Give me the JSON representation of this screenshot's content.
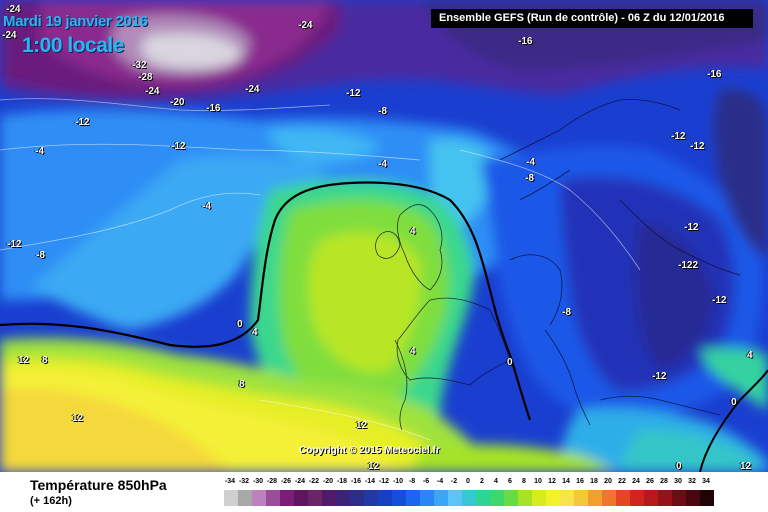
{
  "header": {
    "date": "Mardi 19 janvier 2016",
    "local_time": "1:00 locale",
    "run_info": "Ensemble GEFS  (Run de contrôle)  -  06 Z du 12/01/2016"
  },
  "copyright": "Copyright © 2015 Meteociel.fr",
  "footer": {
    "title": "Température 850hPa",
    "subtitle": "(+ 162h)"
  },
  "legend": {
    "values": [
      "-34",
      "-32",
      "-30",
      "-28",
      "-26",
      "-24",
      "-22",
      "-20",
      "-18",
      "-16",
      "-14",
      "-12",
      "-10",
      "-8",
      "-6",
      "-4",
      "-2",
      "0",
      "2",
      "4",
      "6",
      "8",
      "10",
      "12",
      "14",
      "16",
      "18",
      "20",
      "22",
      "24",
      "26",
      "28",
      "30",
      "32",
      "34"
    ],
    "colors": [
      "#cfcfcf",
      "#a8a8a8",
      "#bd82bd",
      "#9a4e9a",
      "#7a1e7a",
      "#5e145e",
      "#6b2467",
      "#4f1a6a",
      "#3b2478",
      "#2c2e8d",
      "#2238a6",
      "#173fc1",
      "#1350da",
      "#1b66ef",
      "#2a86f7",
      "#3ba6f8",
      "#5bc6f6",
      "#37c8d2",
      "#2fd494",
      "#3ad86e",
      "#66dc44",
      "#a6e326",
      "#d7ec1f",
      "#f2f229",
      "#f7e34a",
      "#f5c83a",
      "#f39f2b",
      "#f0752a",
      "#e44624",
      "#cf2720",
      "#b5191c",
      "#95121a",
      "#6e0c16",
      "#4a0711",
      "#200307"
    ]
  },
  "map_labels": [
    {
      "text": "-24",
      "light": true
    },
    {
      "text": "-24",
      "light": true
    },
    {
      "text": "-24",
      "light": true
    },
    {
      "text": "-16",
      "light": true
    },
    {
      "text": "-32",
      "light": true
    },
    {
      "text": "-28",
      "light": true
    },
    {
      "text": "-24",
      "light": true
    },
    {
      "text": "-20",
      "light": true
    },
    {
      "text": "-16",
      "light": true
    },
    {
      "text": "-24",
      "light": true
    },
    {
      "text": "-16",
      "light": true
    },
    {
      "text": "-12",
      "light": true
    },
    {
      "text": "-12",
      "light": true
    },
    {
      "text": "-8",
      "light": true
    },
    {
      "text": "-12",
      "light": true
    },
    {
      "text": "-12",
      "light": true
    },
    {
      "text": "-4",
      "light": true
    },
    {
      "text": "-4",
      "light": true
    },
    {
      "text": "-4",
      "light": true
    },
    {
      "text": "-8",
      "light": true
    },
    {
      "text": "-12",
      "light": true
    },
    {
      "text": "-12",
      "light": true
    },
    {
      "text": "-4",
      "light": true
    },
    {
      "text": "-12",
      "light": true
    },
    {
      "text": "-8",
      "light": true
    },
    {
      "text": "4",
      "light": true
    },
    {
      "text": "-122",
      "light": true
    },
    {
      "text": "-12",
      "light": true
    },
    {
      "text": "-8",
      "light": true
    },
    {
      "text": "0",
      "light": true
    },
    {
      "text": "4",
      "light": true
    },
    {
      "text": "12",
      "light": true
    },
    {
      "text": "8",
      "light": true
    },
    {
      "text": "4",
      "light": true
    },
    {
      "text": "8",
      "light": true
    },
    {
      "text": "12",
      "light": true
    },
    {
      "text": "12",
      "light": true
    },
    {
      "text": "0",
      "light": true
    },
    {
      "text": "-12",
      "light": true
    },
    {
      "text": "4",
      "light": true
    },
    {
      "text": "0",
      "light": true
    },
    {
      "text": "0",
      "light": true
    },
    {
      "text": "12",
      "light": true
    },
    {
      "text": "12",
      "light": true
    }
  ]
}
